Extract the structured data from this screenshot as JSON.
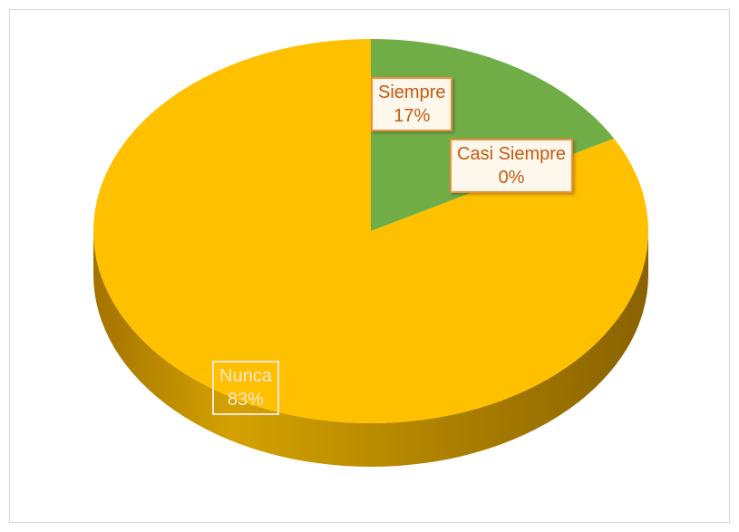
{
  "chart_data": {
    "type": "pie",
    "title": "",
    "slices": [
      {
        "label": "Siempre",
        "value": 17,
        "pct_label": "17%",
        "color": "#70ad47"
      },
      {
        "label": "Casi Siempre",
        "value": 0,
        "pct_label": "0%",
        "color": "#ed7d31"
      },
      {
        "label": "Nunca",
        "value": 83,
        "pct_label": "83%",
        "color": "#ffc000"
      }
    ],
    "style": "3d",
    "legend": "none"
  }
}
